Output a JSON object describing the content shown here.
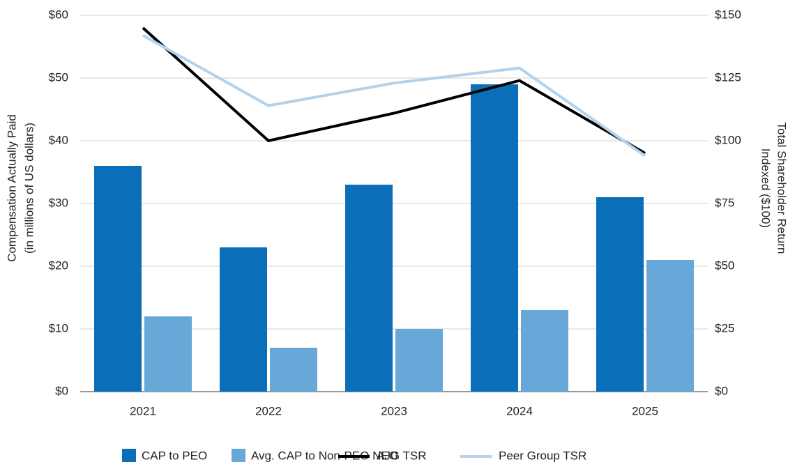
{
  "chart_data": {
    "type": "bar",
    "categories": [
      "2021",
      "2022",
      "2023",
      "2024",
      "2025"
    ],
    "y_label": [
      "Compensation Actually Paid",
      "(in millions of US dollars)"
    ],
    "y2_label": [
      "Total Shareholder Return",
      "Indexed ($100)"
    ],
    "ylim": [
      0,
      60
    ],
    "yticks": [
      {
        "value": 0,
        "label": "$0"
      },
      {
        "value": 10,
        "label": "$10"
      },
      {
        "value": 20,
        "label": "$20"
      },
      {
        "value": 30,
        "label": "$30"
      },
      {
        "value": 40,
        "label": "$40"
      },
      {
        "value": 50,
        "label": "$50"
      },
      {
        "value": 60,
        "label": "$60"
      }
    ],
    "y2lim": [
      0,
      150
    ],
    "y2ticks": [
      {
        "value": 0,
        "label": "$0"
      },
      {
        "value": 25,
        "label": "$25"
      },
      {
        "value": 50,
        "label": "$50"
      },
      {
        "value": 75,
        "label": "$75"
      },
      {
        "value": 100,
        "label": "$100"
      },
      {
        "value": 125,
        "label": "$125"
      },
      {
        "value": 150,
        "label": "$150"
      }
    ],
    "grid": true,
    "legend": "bottom",
    "series": [
      {
        "name": "CAP to PEO",
        "type": "bar",
        "color": "#0a6eb8",
        "values": [
          36,
          23,
          33,
          49,
          31
        ]
      },
      {
        "name": "Avg. CAP to Non-PEO NEO",
        "type": "bar",
        "color": "#68a8d9",
        "values": [
          12,
          7,
          10,
          13,
          21
        ]
      },
      {
        "name": "AJG TSR",
        "type": "line",
        "axis": "y2",
        "color": "#000000",
        "values": [
          145,
          100,
          111,
          124,
          95
        ]
      },
      {
        "name": "Peer Group TSR",
        "type": "line",
        "axis": "y2",
        "color": "#b3d2ec",
        "values": [
          142,
          114,
          123,
          129,
          94
        ]
      }
    ]
  }
}
